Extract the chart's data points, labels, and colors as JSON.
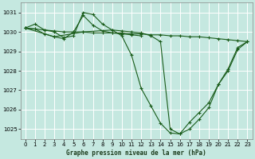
{
  "title": "Graphe pression niveau de la mer (hPa)",
  "bg_color": "#c5e8e0",
  "grid_color": "#b0d8d0",
  "line_color": "#1a5c1a",
  "ylim": [
    1024.5,
    1031.5
  ],
  "xlim": [
    -0.5,
    23.5
  ],
  "yticks": [
    1025,
    1026,
    1027,
    1028,
    1029,
    1030,
    1031
  ],
  "xticks": [
    0,
    1,
    2,
    3,
    4,
    5,
    6,
    7,
    8,
    9,
    10,
    11,
    12,
    13,
    14,
    15,
    16,
    17,
    18,
    19,
    20,
    21,
    22,
    23
  ],
  "series": [
    {
      "x": [
        0,
        1,
        2,
        3,
        4,
        5,
        6,
        7,
        8,
        9,
        10,
        11,
        12,
        13,
        14,
        15,
        16,
        17,
        18,
        19,
        20,
        21,
        22,
        23
      ],
      "y": [
        1030.2,
        1030.4,
        1030.1,
        1030.0,
        1029.7,
        1029.8,
        1031.0,
        1030.9,
        1030.4,
        1030.1,
        1029.8,
        1028.8,
        1027.1,
        1026.2,
        1025.3,
        1024.8,
        1024.75,
        1025.0,
        1025.5,
        1026.1,
        1027.3,
        1028.1,
        1029.2,
        1029.5
      ]
    },
    {
      "x": [
        0,
        1,
        2,
        3,
        4,
        5,
        6,
        7,
        8,
        9,
        10,
        11,
        12
      ],
      "y": [
        1030.2,
        1030.15,
        1029.9,
        1029.75,
        1029.65,
        1030.0,
        1030.85,
        1030.35,
        1030.05,
        1029.95,
        1029.9,
        1029.85,
        1029.8
      ]
    },
    {
      "x": [
        0,
        3,
        6,
        9,
        10,
        11,
        12,
        13,
        14,
        15,
        16,
        17,
        18,
        19,
        20,
        21,
        22,
        23
      ],
      "y": [
        1030.2,
        1029.75,
        1030.0,
        1030.1,
        1030.05,
        1030.0,
        1029.95,
        1029.8,
        1029.5,
        1025.0,
        1024.75,
        1025.35,
        1025.85,
        1026.35,
        1027.3,
        1028.0,
        1029.1,
        1029.5
      ]
    },
    {
      "x": [
        0,
        1,
        2,
        3,
        4,
        5,
        6,
        7,
        8,
        9,
        10,
        11,
        12,
        13,
        14,
        15,
        16,
        17,
        18,
        19,
        20,
        21,
        22,
        23
      ],
      "y": [
        1030.2,
        1030.15,
        1030.1,
        1030.05,
        1030.0,
        1030.0,
        1030.0,
        1029.95,
        1029.95,
        1029.95,
        1029.95,
        1029.9,
        1029.9,
        1029.85,
        1029.85,
        1029.8,
        1029.8,
        1029.75,
        1029.75,
        1029.7,
        1029.65,
        1029.6,
        1029.55,
        1029.5
      ]
    }
  ]
}
